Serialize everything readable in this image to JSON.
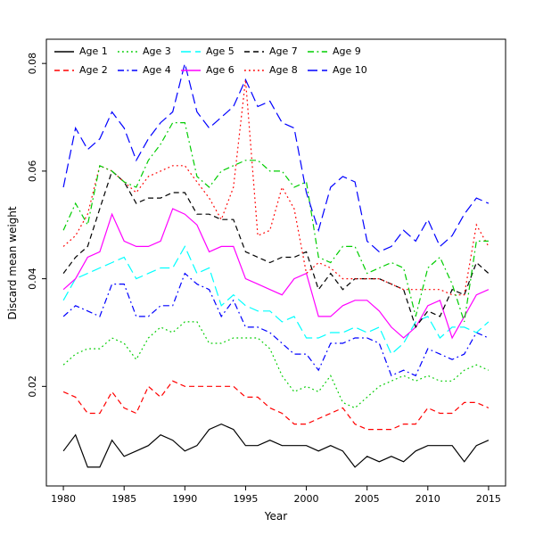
{
  "figure": {
    "background": "#ffffff"
  },
  "chart_data": {
    "type": "line",
    "title": "",
    "xlabel": "Year",
    "ylabel": "Discard mean weight",
    "xlim": [
      1978.6,
      2016.4
    ],
    "ylim": [
      0.0015,
      0.0845
    ],
    "x_ticks": [
      1980,
      1985,
      1990,
      1995,
      2000,
      2005,
      2010,
      2015
    ],
    "y_ticks": [
      0.02,
      0.04,
      0.06,
      0.08
    ],
    "y_tick_labels": [
      "0.02",
      "0.04",
      "0.06",
      "0.08"
    ],
    "grid": false,
    "legend_position": "top-left",
    "x": [
      1980,
      1981,
      1982,
      1983,
      1984,
      1985,
      1986,
      1987,
      1988,
      1989,
      1990,
      1991,
      1992,
      1993,
      1994,
      1995,
      1996,
      1997,
      1998,
      1999,
      2000,
      2001,
      2002,
      2003,
      2004,
      2005,
      2006,
      2007,
      2008,
      2009,
      2010,
      2011,
      2012,
      2013,
      2014,
      2015
    ],
    "series": [
      {
        "name": "Age 1",
        "color": "#000000",
        "dash": "solid",
        "values": [
          0.008,
          0.011,
          0.005,
          0.005,
          0.01,
          0.007,
          0.008,
          0.009,
          0.011,
          0.01,
          0.008,
          0.009,
          0.012,
          0.013,
          0.012,
          0.009,
          0.009,
          0.01,
          0.009,
          0.009,
          0.009,
          0.008,
          0.009,
          0.008,
          0.005,
          0.007,
          0.006,
          0.007,
          0.006,
          0.008,
          0.009,
          0.009,
          0.009,
          0.006,
          0.009,
          0.01
        ]
      },
      {
        "name": "Age 2",
        "color": "#ff0000",
        "dash": "dashed",
        "values": [
          0.019,
          0.018,
          0.015,
          0.015,
          0.019,
          0.016,
          0.015,
          0.02,
          0.018,
          0.021,
          0.02,
          0.02,
          0.02,
          0.02,
          0.02,
          0.018,
          0.018,
          0.016,
          0.015,
          0.013,
          0.013,
          0.014,
          0.015,
          0.016,
          0.013,
          0.012,
          0.012,
          0.012,
          0.013,
          0.013,
          0.016,
          0.015,
          0.015,
          0.017,
          0.017,
          0.016
        ]
      },
      {
        "name": "Age 3",
        "color": "#00cd00",
        "dash": "dotted",
        "values": [
          0.024,
          0.026,
          0.027,
          0.027,
          0.029,
          0.028,
          0.025,
          0.029,
          0.031,
          0.03,
          0.032,
          0.032,
          0.028,
          0.028,
          0.029,
          0.029,
          0.029,
          0.027,
          0.022,
          0.019,
          0.02,
          0.019,
          0.022,
          0.017,
          0.016,
          0.018,
          0.02,
          0.021,
          0.022,
          0.021,
          0.022,
          0.021,
          0.021,
          0.023,
          0.024,
          0.023
        ]
      },
      {
        "name": "Age 4",
        "color": "#0000ff",
        "dash": "dashdot",
        "values": [
          0.033,
          0.035,
          0.034,
          0.033,
          0.039,
          0.039,
          0.033,
          0.033,
          0.035,
          0.035,
          0.041,
          0.039,
          0.038,
          0.033,
          0.036,
          0.031,
          0.031,
          0.03,
          0.028,
          0.026,
          0.026,
          0.023,
          0.028,
          0.028,
          0.029,
          0.029,
          0.028,
          0.022,
          0.023,
          0.022,
          0.027,
          0.026,
          0.025,
          0.026,
          0.03,
          0.029
        ]
      },
      {
        "name": "Age 5",
        "color": "#00ffff",
        "dash": "longdash",
        "values": [
          0.036,
          0.04,
          0.041,
          0.042,
          0.043,
          0.044,
          0.04,
          0.041,
          0.042,
          0.042,
          0.046,
          0.041,
          0.042,
          0.035,
          0.037,
          0.035,
          0.034,
          0.034,
          0.032,
          0.033,
          0.029,
          0.029,
          0.03,
          0.03,
          0.031,
          0.03,
          0.031,
          0.026,
          0.028,
          0.032,
          0.033,
          0.029,
          0.031,
          0.031,
          0.03,
          0.032
        ]
      },
      {
        "name": "Age 6",
        "color": "#ff00ff",
        "dash": "solid",
        "values": [
          0.038,
          0.04,
          0.044,
          0.045,
          0.052,
          0.047,
          0.046,
          0.046,
          0.047,
          0.053,
          0.052,
          0.05,
          0.045,
          0.046,
          0.046,
          0.04,
          0.039,
          0.038,
          0.037,
          0.04,
          0.041,
          0.033,
          0.033,
          0.035,
          0.036,
          0.036,
          0.034,
          0.031,
          0.029,
          0.031,
          0.035,
          0.036,
          0.029,
          0.033,
          0.037,
          0.038
        ]
      },
      {
        "name": "Age 7",
        "color": "#000000",
        "dash": "dashed",
        "values": [
          0.041,
          0.044,
          0.046,
          0.053,
          0.06,
          0.058,
          0.054,
          0.055,
          0.055,
          0.056,
          0.056,
          0.052,
          0.052,
          0.051,
          0.051,
          0.045,
          0.044,
          0.043,
          0.044,
          0.044,
          0.045,
          0.038,
          0.041,
          0.038,
          0.04,
          0.04,
          0.04,
          0.039,
          0.038,
          0.031,
          0.034,
          0.033,
          0.038,
          0.037,
          0.043,
          0.041
        ]
      },
      {
        "name": "Age 8",
        "color": "#ff0000",
        "dash": "dotted",
        "values": [
          0.046,
          0.048,
          0.052,
          0.061,
          0.06,
          0.058,
          0.056,
          0.059,
          0.06,
          0.061,
          0.061,
          0.058,
          0.055,
          0.051,
          0.057,
          0.077,
          0.048,
          0.049,
          0.057,
          0.053,
          0.041,
          0.043,
          0.042,
          0.04,
          0.04,
          0.04,
          0.04,
          0.039,
          0.038,
          0.038,
          0.038,
          0.038,
          0.037,
          0.037,
          0.05,
          0.046
        ]
      },
      {
        "name": "Age 9",
        "color": "#00cd00",
        "dash": "dashdot",
        "values": [
          0.049,
          0.054,
          0.05,
          0.061,
          0.06,
          0.058,
          0.057,
          0.062,
          0.065,
          0.069,
          0.069,
          0.059,
          0.057,
          0.06,
          0.061,
          0.062,
          0.062,
          0.06,
          0.06,
          0.057,
          0.058,
          0.044,
          0.043,
          0.046,
          0.046,
          0.041,
          0.042,
          0.043,
          0.042,
          0.033,
          0.042,
          0.044,
          0.039,
          0.032,
          0.047,
          0.047
        ]
      },
      {
        "name": "Age 10",
        "color": "#0000ff",
        "dash": "longdash",
        "values": [
          0.057,
          0.068,
          0.064,
          0.066,
          0.071,
          0.068,
          0.062,
          0.066,
          0.069,
          0.071,
          0.08,
          0.071,
          0.068,
          0.07,
          0.072,
          0.077,
          0.072,
          0.073,
          0.069,
          0.068,
          0.056,
          0.049,
          0.057,
          0.059,
          0.058,
          0.047,
          0.045,
          0.046,
          0.049,
          0.047,
          0.051,
          0.046,
          0.048,
          0.052,
          0.055,
          0.054
        ]
      }
    ]
  }
}
